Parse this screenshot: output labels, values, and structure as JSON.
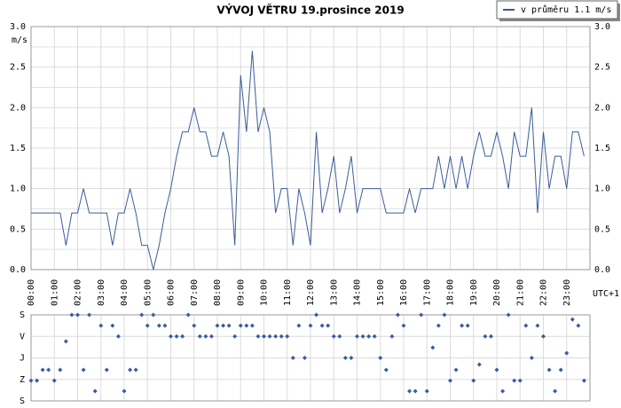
{
  "chart_data": [
    {
      "type": "line",
      "title": "VÝVOJ VĚTRU  19.prosince 2019",
      "y_unit": "m/s",
      "x_label": "UTC+1",
      "x": [
        "00:00",
        "00:15",
        "00:30",
        "00:45",
        "01:00",
        "01:15",
        "01:30",
        "01:45",
        "02:00",
        "02:15",
        "02:30",
        "02:45",
        "03:00",
        "03:15",
        "03:30",
        "03:45",
        "04:00",
        "04:15",
        "04:30",
        "04:45",
        "05:00",
        "05:15",
        "05:30",
        "05:45",
        "06:00",
        "06:15",
        "06:30",
        "06:45",
        "07:00",
        "07:15",
        "07:30",
        "07:45",
        "08:00",
        "08:15",
        "08:30",
        "08:45",
        "09:00",
        "09:15",
        "09:30",
        "09:45",
        "10:00",
        "10:15",
        "10:30",
        "10:45",
        "11:00",
        "11:15",
        "11:30",
        "11:45",
        "12:00",
        "12:15",
        "12:30",
        "12:45",
        "13:00",
        "13:15",
        "13:30",
        "13:45",
        "14:00",
        "14:15",
        "14:30",
        "14:45",
        "15:00",
        "15:15",
        "15:30",
        "15:45",
        "16:00",
        "16:15",
        "16:30",
        "16:45",
        "17:00",
        "17:15",
        "17:30",
        "17:45",
        "18:00",
        "18:15",
        "18:30",
        "18:45",
        "19:00",
        "19:15",
        "19:30",
        "19:45",
        "20:00",
        "20:15",
        "20:30",
        "20:45",
        "21:00",
        "21:15",
        "21:30",
        "21:45",
        "22:00",
        "22:15",
        "22:30",
        "22:45",
        "23:00",
        "23:15",
        "23:30",
        "23:45"
      ],
      "series": [
        {
          "name": "v průměru 1.1 m/s",
          "color": "#3a5c9c",
          "values": [
            0.7,
            0.7,
            0.7,
            0.7,
            0.7,
            0.7,
            0.3,
            0.7,
            0.7,
            1.0,
            0.7,
            0.7,
            0.7,
            0.7,
            0.3,
            0.7,
            0.7,
            1.0,
            0.7,
            0.3,
            0.3,
            0.0,
            0.3,
            0.7,
            1.0,
            1.4,
            1.7,
            1.7,
            2.0,
            1.7,
            1.7,
            1.4,
            1.4,
            1.7,
            1.4,
            0.3,
            2.4,
            1.7,
            2.7,
            1.7,
            2.0,
            1.7,
            0.7,
            1.0,
            1.0,
            0.3,
            1.0,
            0.7,
            0.3,
            1.7,
            0.7,
            1.0,
            1.4,
            0.7,
            1.0,
            1.4,
            0.7,
            1.0,
            1.0,
            1.0,
            1.0,
            0.7,
            0.7,
            0.7,
            0.7,
            1.0,
            0.7,
            1.0,
            1.0,
            1.0,
            1.4,
            1.0,
            1.4,
            1.0,
            1.4,
            1.0,
            1.4,
            1.7,
            1.4,
            1.4,
            1.7,
            1.4,
            1.0,
            1.7,
            1.4,
            1.4,
            2.0,
            0.7,
            1.7,
            1.0,
            1.4,
            1.4,
            1.0,
            1.7,
            1.7,
            1.4
          ]
        }
      ],
      "xlim": [
        "00:00",
        "24:00"
      ],
      "xticks": [
        "00:00",
        "01:00",
        "02:00",
        "03:00",
        "04:00",
        "05:00",
        "06:00",
        "07:00",
        "08:00",
        "09:00",
        "10:00",
        "11:00",
        "12:00",
        "13:00",
        "14:00",
        "15:00",
        "16:00",
        "17:00",
        "18:00",
        "19:00",
        "20:00",
        "21:00",
        "22:00",
        "23:00"
      ],
      "ylim": [
        0,
        3
      ],
      "yticks": [
        {
          "value": 0,
          "label": "0.0"
        },
        {
          "value": 0.5,
          "label": "0.5"
        },
        {
          "value": 1,
          "label": "1.0"
        },
        {
          "value": 1.5,
          "label": "1.5"
        },
        {
          "value": 2,
          "label": "2.0"
        },
        {
          "value": 2.5,
          "label": "2.5"
        },
        {
          "value": 3,
          "label": "3.0"
        }
      ],
      "y_minor_grid": [
        0.25,
        0.75,
        1.25,
        1.75,
        2.25,
        2.75
      ],
      "grid": true,
      "legend": "top-right"
    },
    {
      "type": "scatter",
      "color": "#3a5c9c",
      "values": [
        275,
        275,
        230,
        230,
        275,
        230,
        111,
        0,
        0,
        230,
        0,
        319,
        45,
        230,
        45,
        90,
        319,
        230,
        230,
        0,
        45,
        0,
        45,
        45,
        90,
        90,
        90,
        0,
        45,
        90,
        90,
        90,
        45,
        45,
        45,
        90,
        45,
        45,
        45,
        90,
        90,
        90,
        90,
        90,
        90,
        180,
        45,
        180,
        45,
        0,
        45,
        45,
        90,
        90,
        180,
        180,
        90,
        90,
        90,
        90,
        180,
        230,
        90,
        0,
        45,
        319,
        319,
        0,
        319,
        137,
        45,
        0,
        275,
        230,
        45,
        45,
        275,
        208,
        90,
        90,
        230,
        319,
        0,
        275,
        275,
        45,
        180,
        45,
        90,
        230,
        319,
        230,
        160,
        19,
        45,
        275
      ],
      "ylim": [
        0,
        360
      ],
      "y_inverted": true,
      "yticks": [
        {
          "value": 0,
          "label": "S"
        },
        {
          "value": 90,
          "label": "V"
        },
        {
          "value": 180,
          "label": "J"
        },
        {
          "value": 270,
          "label": "Z"
        },
        {
          "value": 360,
          "label": "S"
        }
      ],
      "grid": true
    }
  ]
}
